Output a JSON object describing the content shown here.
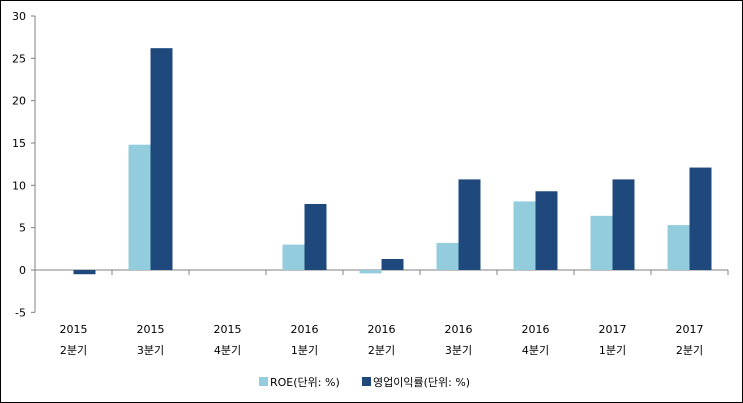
{
  "chart_data": {
    "type": "bar",
    "title": "",
    "xlabel": "",
    "ylabel": "",
    "ylim": [
      -5,
      30
    ],
    "yticks": [
      -5,
      0,
      5,
      10,
      15,
      20,
      25,
      30
    ],
    "grid": false,
    "legend_position": "bottom",
    "categories": [
      [
        "2015",
        "2분기"
      ],
      [
        "2015",
        "3분기"
      ],
      [
        "2015",
        "4분기"
      ],
      [
        "2016",
        "1분기"
      ],
      [
        "2016",
        "2분기"
      ],
      [
        "2016",
        "3분기"
      ],
      [
        "2016",
        "4분기"
      ],
      [
        "2017",
        "1분기"
      ],
      [
        "2017",
        "2분기"
      ]
    ],
    "series": [
      {
        "name": "ROE(단위: %)",
        "color": "#93CDDD",
        "values": [
          null,
          14.8,
          null,
          3.0,
          -0.4,
          3.2,
          8.1,
          6.4,
          5.3
        ]
      },
      {
        "name": "영업이익률(단위: %)",
        "color": "#1F497D",
        "values": [
          -0.5,
          26.2,
          null,
          7.8,
          1.3,
          10.7,
          9.3,
          10.7,
          12.1
        ]
      }
    ]
  }
}
